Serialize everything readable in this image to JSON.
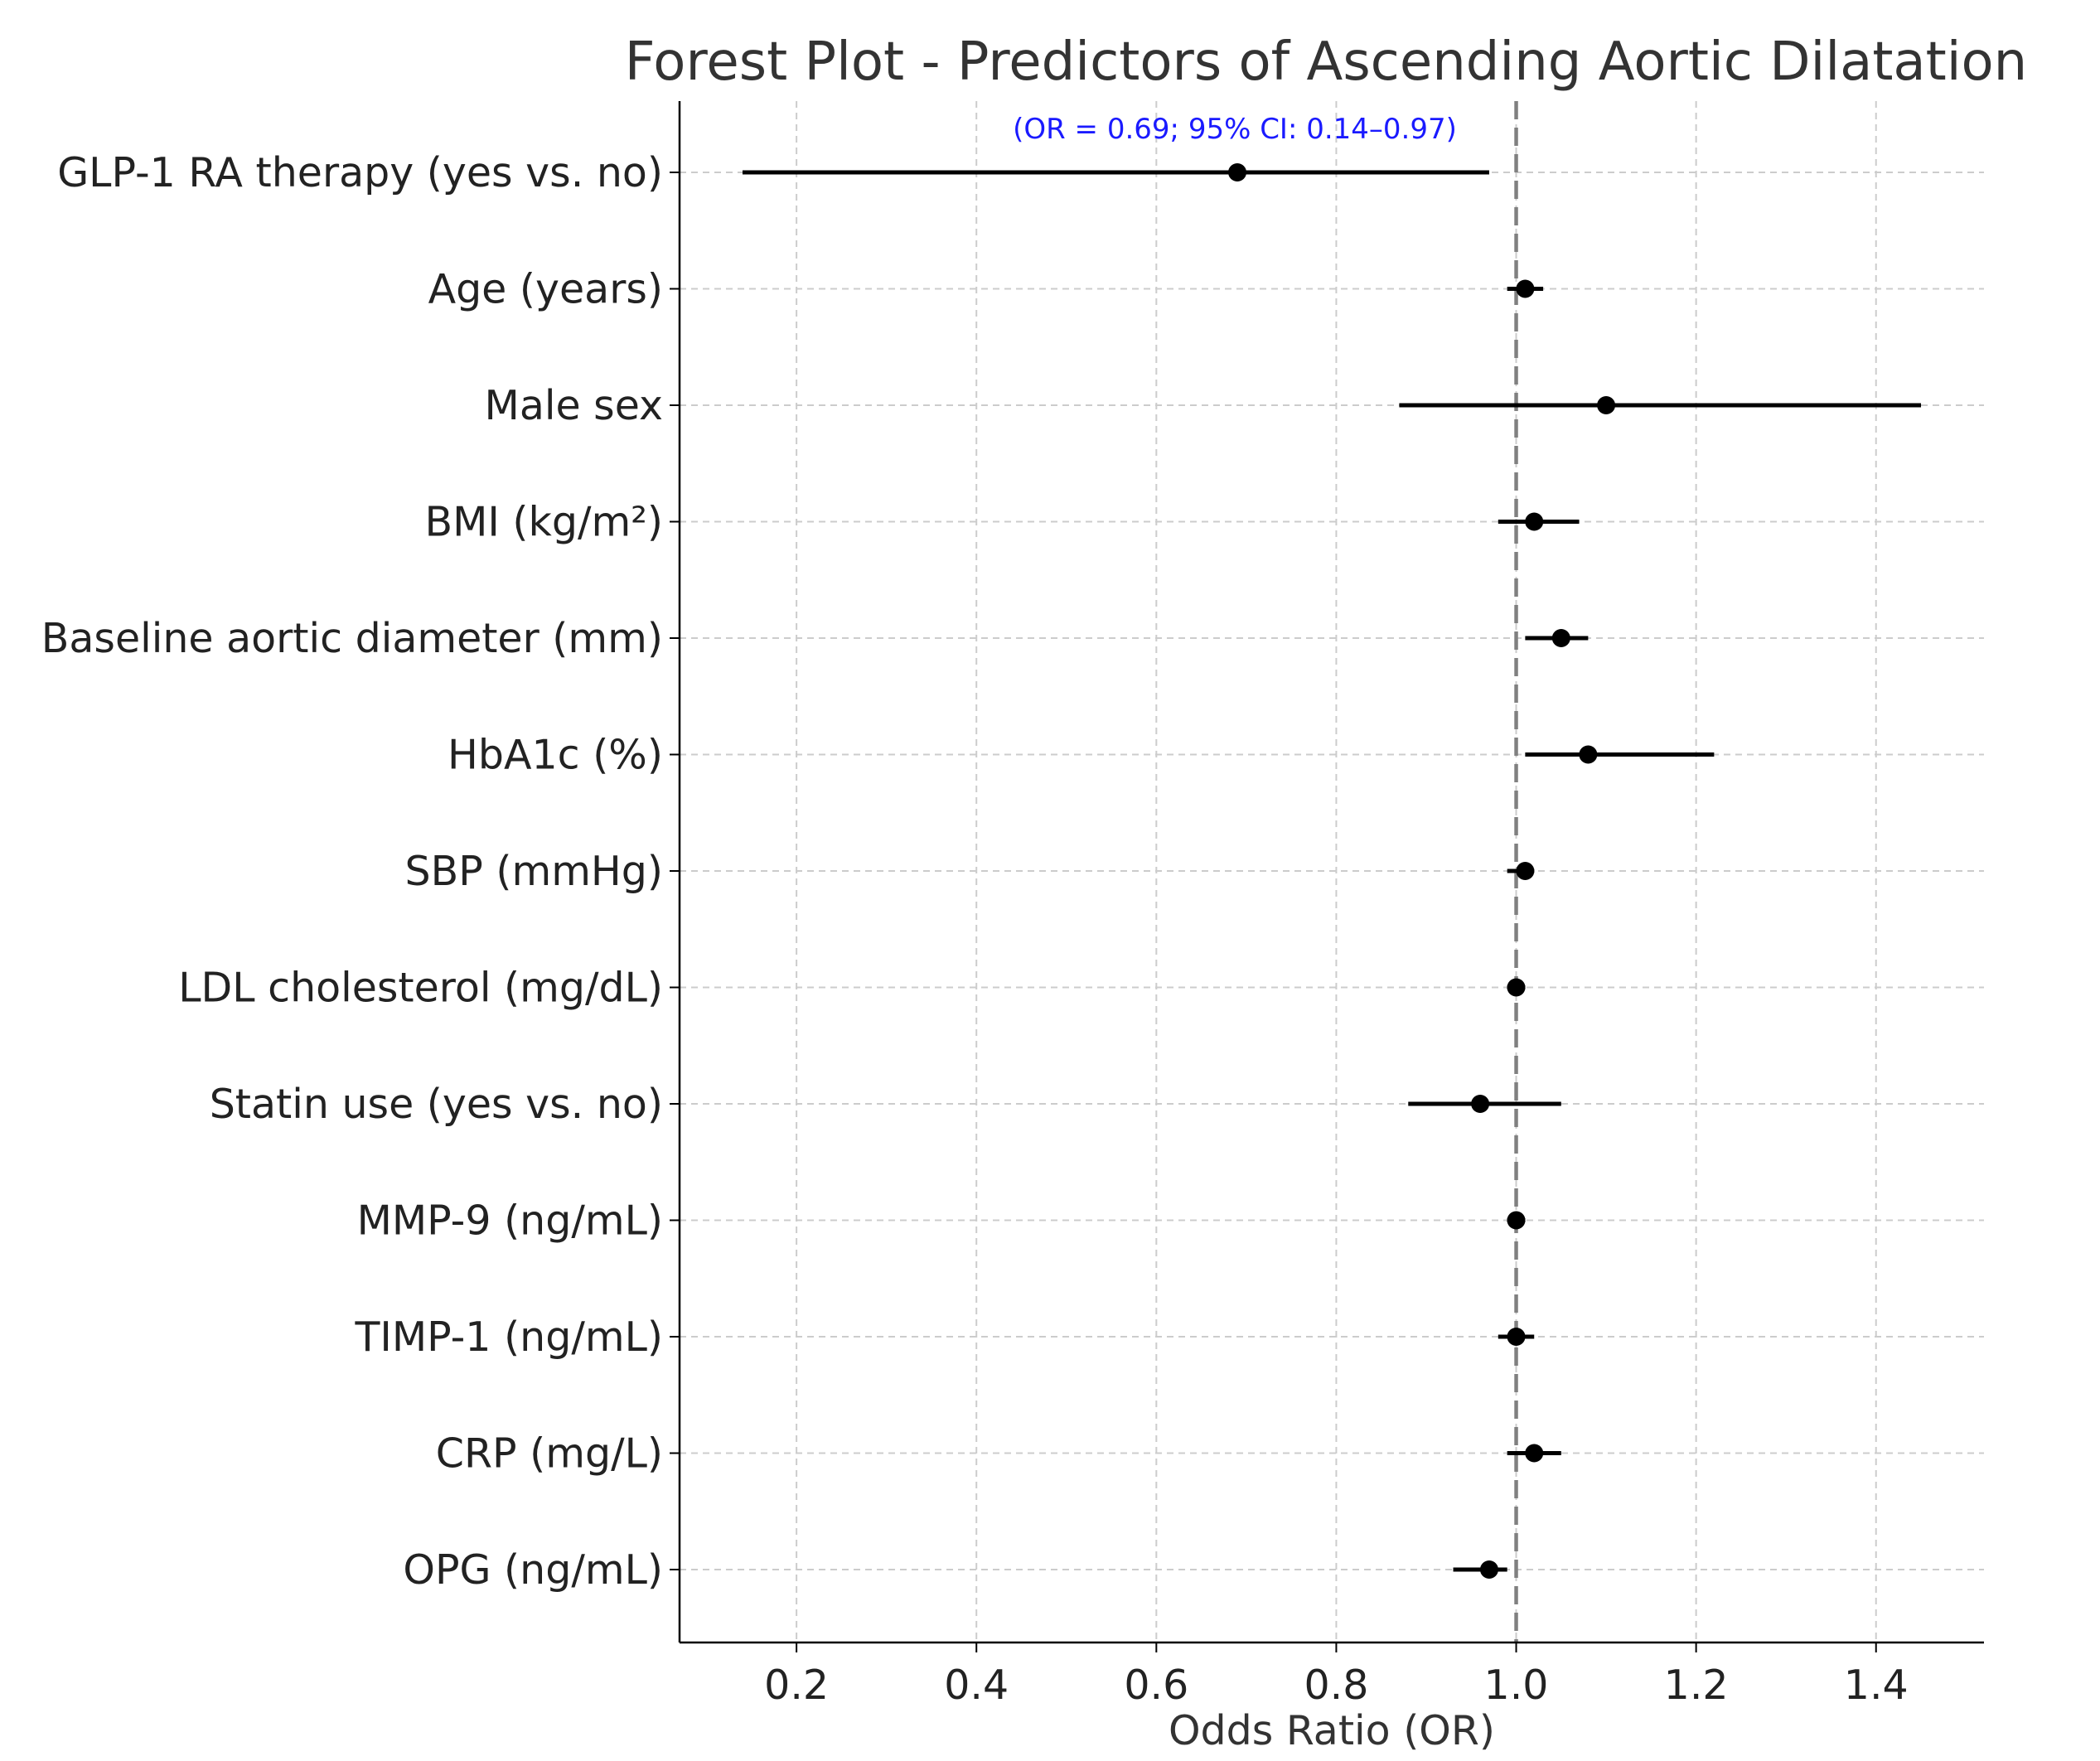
{
  "chart_data": {
    "type": "forest",
    "title": "Forest Plot - Predictors of Ascending Aortic Dilatation",
    "xlabel": "Odds Ratio (OR)",
    "ylabel": "",
    "xlim": [
      0.07,
      1.52
    ],
    "xticks": [
      "0.2",
      "0.4",
      "0.6",
      "0.8",
      "1.0",
      "1.2",
      "1.4"
    ],
    "reference_line": 1.0,
    "grid": true,
    "marker_color": "#000000",
    "reference_color": "#808080",
    "annotation": "(OR = 0.69; 95% CI: 0.14–0.97)",
    "annotation_color": "#1a1aff",
    "rows": [
      {
        "label": "GLP-1 RA therapy (yes vs. no)",
        "or": 0.69,
        "lower": 0.14,
        "upper": 0.97
      },
      {
        "label": "Age (years)",
        "or": 1.01,
        "lower": 0.99,
        "upper": 1.03
      },
      {
        "label": "Male sex",
        "or": 1.1,
        "lower": 0.87,
        "upper": 1.45
      },
      {
        "label": "BMI (kg/m²)",
        "or": 1.02,
        "lower": 0.98,
        "upper": 1.07
      },
      {
        "label": "Baseline aortic diameter (mm)",
        "or": 1.05,
        "lower": 1.01,
        "upper": 1.08
      },
      {
        "label": "HbA1c (%)",
        "or": 1.08,
        "lower": 1.01,
        "upper": 1.22
      },
      {
        "label": "SBP (mmHg)",
        "or": 1.01,
        "lower": 0.99,
        "upper": 1.02
      },
      {
        "label": "LDL cholesterol (mg/dL)",
        "or": 1.0,
        "lower": 0.99,
        "upper": 1.01
      },
      {
        "label": "Statin use (yes vs. no)",
        "or": 0.96,
        "lower": 0.88,
        "upper": 1.05
      },
      {
        "label": "MMP-9 (ng/mL)",
        "or": 1.0,
        "lower": 0.99,
        "upper": 1.01
      },
      {
        "label": "TIMP-1 (ng/mL)",
        "or": 1.0,
        "lower": 0.98,
        "upper": 1.02
      },
      {
        "label": "CRP (mg/L)",
        "or": 1.02,
        "lower": 0.99,
        "upper": 1.05
      },
      {
        "label": "OPG (ng/mL)",
        "or": 0.97,
        "lower": 0.93,
        "upper": 0.99
      }
    ]
  }
}
